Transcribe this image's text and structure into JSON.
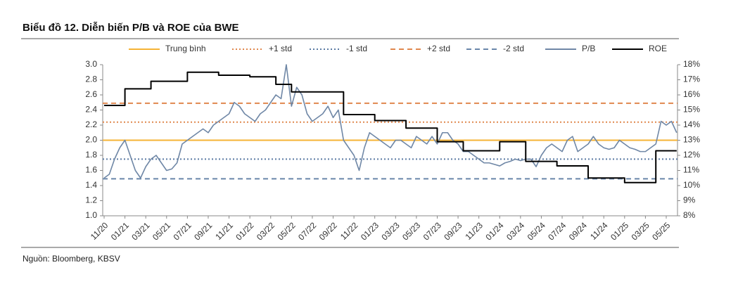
{
  "chart_data": {
    "type": "line",
    "title": "Biểu đồ 12. Diễn biến P/B và ROE của BWE",
    "source": "Nguồn: Bloomberg, KBSV",
    "categories": [
      "11/20",
      null,
      null,
      null,
      "01/21",
      null,
      null,
      null,
      "03/21",
      null,
      null,
      null,
      "05/21",
      null,
      null,
      null,
      "07/21",
      null,
      null,
      null,
      "09/21",
      null,
      null,
      null,
      "11/21",
      null,
      null,
      null,
      "01/22",
      null,
      null,
      null,
      "03/22",
      null,
      null,
      null,
      "05/22",
      null,
      null,
      null,
      "07/22",
      null,
      null,
      null,
      "09/22",
      null,
      null,
      null,
      "11/22",
      null,
      null,
      null,
      "01/23",
      null,
      null,
      null,
      "03/23",
      null,
      null,
      null,
      "05/23",
      null,
      null,
      null,
      "07/23",
      null,
      null,
      null,
      "09/23",
      null,
      null,
      null,
      "11/23",
      null,
      null,
      null,
      "01/24",
      null,
      null,
      null,
      "03/24",
      null,
      null,
      null,
      "05/24",
      null,
      null,
      null,
      "07/24",
      null,
      null,
      null,
      "09/24",
      null,
      null,
      null,
      "11/24",
      null,
      null,
      null,
      "01/25",
      null,
      null,
      null,
      "03/25",
      null,
      null,
      null,
      "05/25",
      null,
      null
    ],
    "reference_lines": [
      {
        "name": "Trung bình",
        "value": 2.0,
        "color": "#f5b335",
        "dash": "solid"
      },
      {
        "name": "+1 std",
        "value": 2.24,
        "color": "#e0884f",
        "dash": "dotted"
      },
      {
        "name": "-1 std",
        "value": 1.75,
        "color": "#5b7ba3",
        "dash": "dotted"
      },
      {
        "name": "+2 std",
        "value": 2.49,
        "color": "#e0884f",
        "dash": "dashed"
      },
      {
        "name": "-2 std",
        "value": 1.49,
        "color": "#6a86aa",
        "dash": "dashed"
      }
    ],
    "series": [
      {
        "name": "P/B",
        "color": "#6f87a6",
        "axis": "y",
        "values": [
          1.5,
          1.55,
          1.75,
          1.9,
          2.0,
          1.8,
          1.6,
          1.5,
          1.65,
          1.75,
          1.8,
          1.7,
          1.6,
          1.62,
          1.7,
          1.95,
          2.0,
          2.05,
          2.1,
          2.15,
          2.1,
          2.2,
          2.25,
          2.3,
          2.35,
          2.5,
          2.45,
          2.35,
          2.3,
          2.25,
          2.35,
          2.4,
          2.5,
          2.6,
          2.55,
          3.0,
          2.45,
          2.7,
          2.6,
          2.35,
          2.25,
          2.3,
          2.35,
          2.45,
          2.3,
          2.4,
          2.0,
          1.9,
          1.8,
          1.6,
          1.9,
          2.1,
          2.05,
          2.0,
          1.95,
          1.9,
          2.0,
          2.0,
          1.95,
          1.9,
          2.05,
          2.0,
          1.95,
          2.05,
          1.95,
          2.1,
          2.1,
          2.0,
          1.95,
          1.85,
          1.85,
          1.8,
          1.75,
          1.7,
          1.7,
          1.68,
          1.66,
          1.7,
          1.72,
          1.75,
          1.73,
          1.75,
          1.75,
          1.65,
          1.8,
          1.9,
          1.95,
          1.9,
          1.85,
          2.0,
          2.05,
          1.85,
          1.9,
          1.95,
          2.05,
          1.95,
          1.9,
          1.88,
          1.9,
          2.0,
          1.95,
          1.9,
          1.88,
          1.85,
          1.85,
          1.9,
          1.95,
          2.25,
          2.2,
          2.25,
          2.1
        ]
      },
      {
        "name": "ROE",
        "color": "#000000",
        "axis": "y2",
        "step": true,
        "values": [
          15.3,
          15.3,
          15.3,
          15.3,
          16.4,
          16.4,
          16.4,
          16.4,
          16.4,
          16.9,
          16.9,
          16.9,
          16.9,
          16.9,
          16.9,
          16.9,
          17.5,
          17.5,
          17.5,
          17.5,
          17.5,
          17.5,
          17.3,
          17.3,
          17.3,
          17.3,
          17.3,
          17.3,
          17.2,
          17.2,
          17.2,
          17.2,
          17.2,
          16.7,
          16.7,
          16.7,
          16.2,
          16.2,
          16.2,
          16.2,
          16.2,
          16.2,
          16.2,
          16.2,
          16.2,
          16.2,
          14.7,
          14.7,
          14.7,
          14.7,
          14.7,
          14.7,
          14.3,
          14.3,
          14.3,
          14.3,
          14.3,
          14.3,
          13.8,
          13.8,
          13.8,
          13.8,
          13.8,
          13.8,
          12.9,
          12.9,
          12.9,
          12.9,
          12.9,
          12.3,
          12.3,
          12.3,
          12.3,
          12.3,
          12.3,
          12.3,
          12.9,
          12.9,
          12.9,
          12.9,
          12.9,
          11.6,
          11.6,
          11.6,
          11.6,
          11.6,
          11.6,
          11.3,
          11.3,
          11.3,
          11.3,
          11.3,
          11.3,
          10.5,
          10.5,
          10.5,
          10.5,
          10.5,
          10.5,
          10.5,
          10.2,
          10.2,
          10.2,
          10.2,
          10.2,
          10.2,
          12.3,
          12.3,
          12.3,
          12.3,
          12.3
        ]
      }
    ],
    "ylim": [
      1.0,
      3.0
    ],
    "yticks": [
      {
        "value": 1.0,
        "label": "1.0"
      },
      {
        "value": 1.2,
        "label": "1.2"
      },
      {
        "value": 1.4,
        "label": "1.4"
      },
      {
        "value": 1.6,
        "label": "1.6"
      },
      {
        "value": 1.8,
        "label": "1.8"
      },
      {
        "value": 2.0,
        "label": "2.0"
      },
      {
        "value": 2.2,
        "label": "2.2"
      },
      {
        "value": 2.4,
        "label": "2.4"
      },
      {
        "value": 2.6,
        "label": "2.6"
      },
      {
        "value": 2.8,
        "label": "2.8"
      },
      {
        "value": 3.0,
        "label": "3.0"
      }
    ],
    "y2lim": [
      8,
      18
    ],
    "y2ticks": [
      {
        "value": 8,
        "label": "8%"
      },
      {
        "value": 9,
        "label": "9%"
      },
      {
        "value": 10,
        "label": "10%"
      },
      {
        "value": 11,
        "label": "11%"
      },
      {
        "value": 12,
        "label": "12%"
      },
      {
        "value": 13,
        "label": "13%"
      },
      {
        "value": 14,
        "label": "14%"
      },
      {
        "value": 15,
        "label": "15%"
      },
      {
        "value": 16,
        "label": "16%"
      },
      {
        "value": 17,
        "label": "17%"
      },
      {
        "value": 18,
        "label": "18%"
      }
    ],
    "legend": "top",
    "grid": false
  }
}
